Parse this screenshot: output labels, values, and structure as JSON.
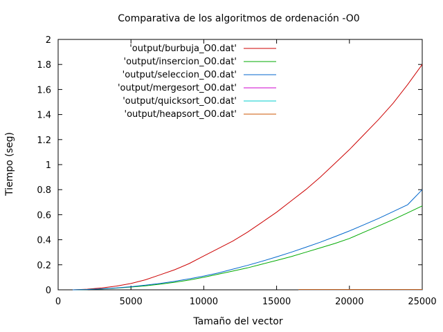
{
  "chart_data": {
    "type": "line",
    "title": "Comparativa de los algoritmos de ordenación -O0",
    "xlabel": "Tamaño del vector",
    "ylabel": "Tiempo (seg)",
    "xlim": [
      0,
      25000
    ],
    "ylim": [
      0,
      2
    ],
    "xticks": [
      0,
      5000,
      10000,
      15000,
      20000,
      25000
    ],
    "yticks": [
      0,
      0.2,
      0.4,
      0.6,
      0.8,
      1,
      1.2,
      1.4,
      1.6,
      1.8,
      2
    ],
    "grid": false,
    "legend_position": "top-right",
    "series": [
      {
        "name": "'output/burbuja_O0.dat'",
        "color": "#cc0000",
        "x": [
          1000,
          2000,
          3000,
          4000,
          5000,
          6000,
          7000,
          8000,
          9000,
          10000,
          11000,
          12000,
          13000,
          14000,
          15000,
          16000,
          17000,
          18000,
          19000,
          20000,
          21000,
          22000,
          23000,
          24000,
          25000
        ],
        "values": [
          0.0,
          0.005,
          0.015,
          0.03,
          0.05,
          0.08,
          0.12,
          0.16,
          0.21,
          0.27,
          0.33,
          0.39,
          0.46,
          0.54,
          0.62,
          0.71,
          0.8,
          0.9,
          1.01,
          1.12,
          1.24,
          1.36,
          1.49,
          1.64,
          1.8
        ]
      },
      {
        "name": "'output/insercion_O0.dat'",
        "color": "#00aa00",
        "x": [
          1000,
          2000,
          3000,
          4000,
          5000,
          6000,
          7000,
          8000,
          9000,
          10000,
          11000,
          12000,
          13000,
          14000,
          15000,
          16000,
          17000,
          18000,
          19000,
          20000,
          21000,
          22000,
          23000,
          24000,
          25000
        ],
        "values": [
          0.0,
          0.002,
          0.007,
          0.014,
          0.022,
          0.032,
          0.045,
          0.06,
          0.078,
          0.1,
          0.125,
          0.15,
          0.175,
          0.205,
          0.235,
          0.265,
          0.3,
          0.335,
          0.37,
          0.41,
          0.46,
          0.51,
          0.56,
          0.615,
          0.67
        ]
      },
      {
        "name": "'output/seleccion_O0.dat'",
        "color": "#0066cc",
        "x": [
          1000,
          2000,
          3000,
          4000,
          5000,
          6000,
          7000,
          8000,
          9000,
          10000,
          11000,
          12000,
          13000,
          14000,
          15000,
          16000,
          17000,
          18000,
          19000,
          20000,
          21000,
          22000,
          23000,
          24000,
          25000
        ],
        "values": [
          0.0,
          0.002,
          0.008,
          0.015,
          0.025,
          0.037,
          0.051,
          0.068,
          0.088,
          0.11,
          0.135,
          0.165,
          0.195,
          0.228,
          0.263,
          0.3,
          0.34,
          0.38,
          0.425,
          0.47,
          0.52,
          0.57,
          0.625,
          0.68,
          0.8
        ]
      },
      {
        "name": "'output/mergesort_O0.dat'",
        "color": "#cc00cc",
        "x": [
          16500,
          17000,
          17500,
          18000,
          19000,
          20000,
          21000,
          22000,
          23000,
          24000,
          25000
        ],
        "values": [
          0.001,
          0.001,
          0.001,
          0.001,
          0.001,
          0.001,
          0.001,
          0.001,
          0.001,
          0.001,
          0.001
        ]
      },
      {
        "name": "'output/quicksort_O0.dat'",
        "color": "#00cccc",
        "x": [
          16500,
          17000,
          18000,
          19000,
          20000,
          21000,
          22000,
          23000,
          24000,
          25000
        ],
        "values": [
          0.001,
          0.001,
          0.001,
          0.001,
          0.001,
          0.001,
          0.001,
          0.001,
          0.001,
          0.001
        ]
      },
      {
        "name": "'output/heapsort_O0.dat'",
        "color": "#cc5500",
        "x": [
          16500,
          17000,
          18000,
          19000,
          20000,
          21000,
          22000,
          23000,
          24000,
          25000
        ],
        "values": [
          0.002,
          0.002,
          0.002,
          0.002,
          0.002,
          0.002,
          0.002,
          0.002,
          0.002,
          0.002
        ]
      }
    ]
  }
}
